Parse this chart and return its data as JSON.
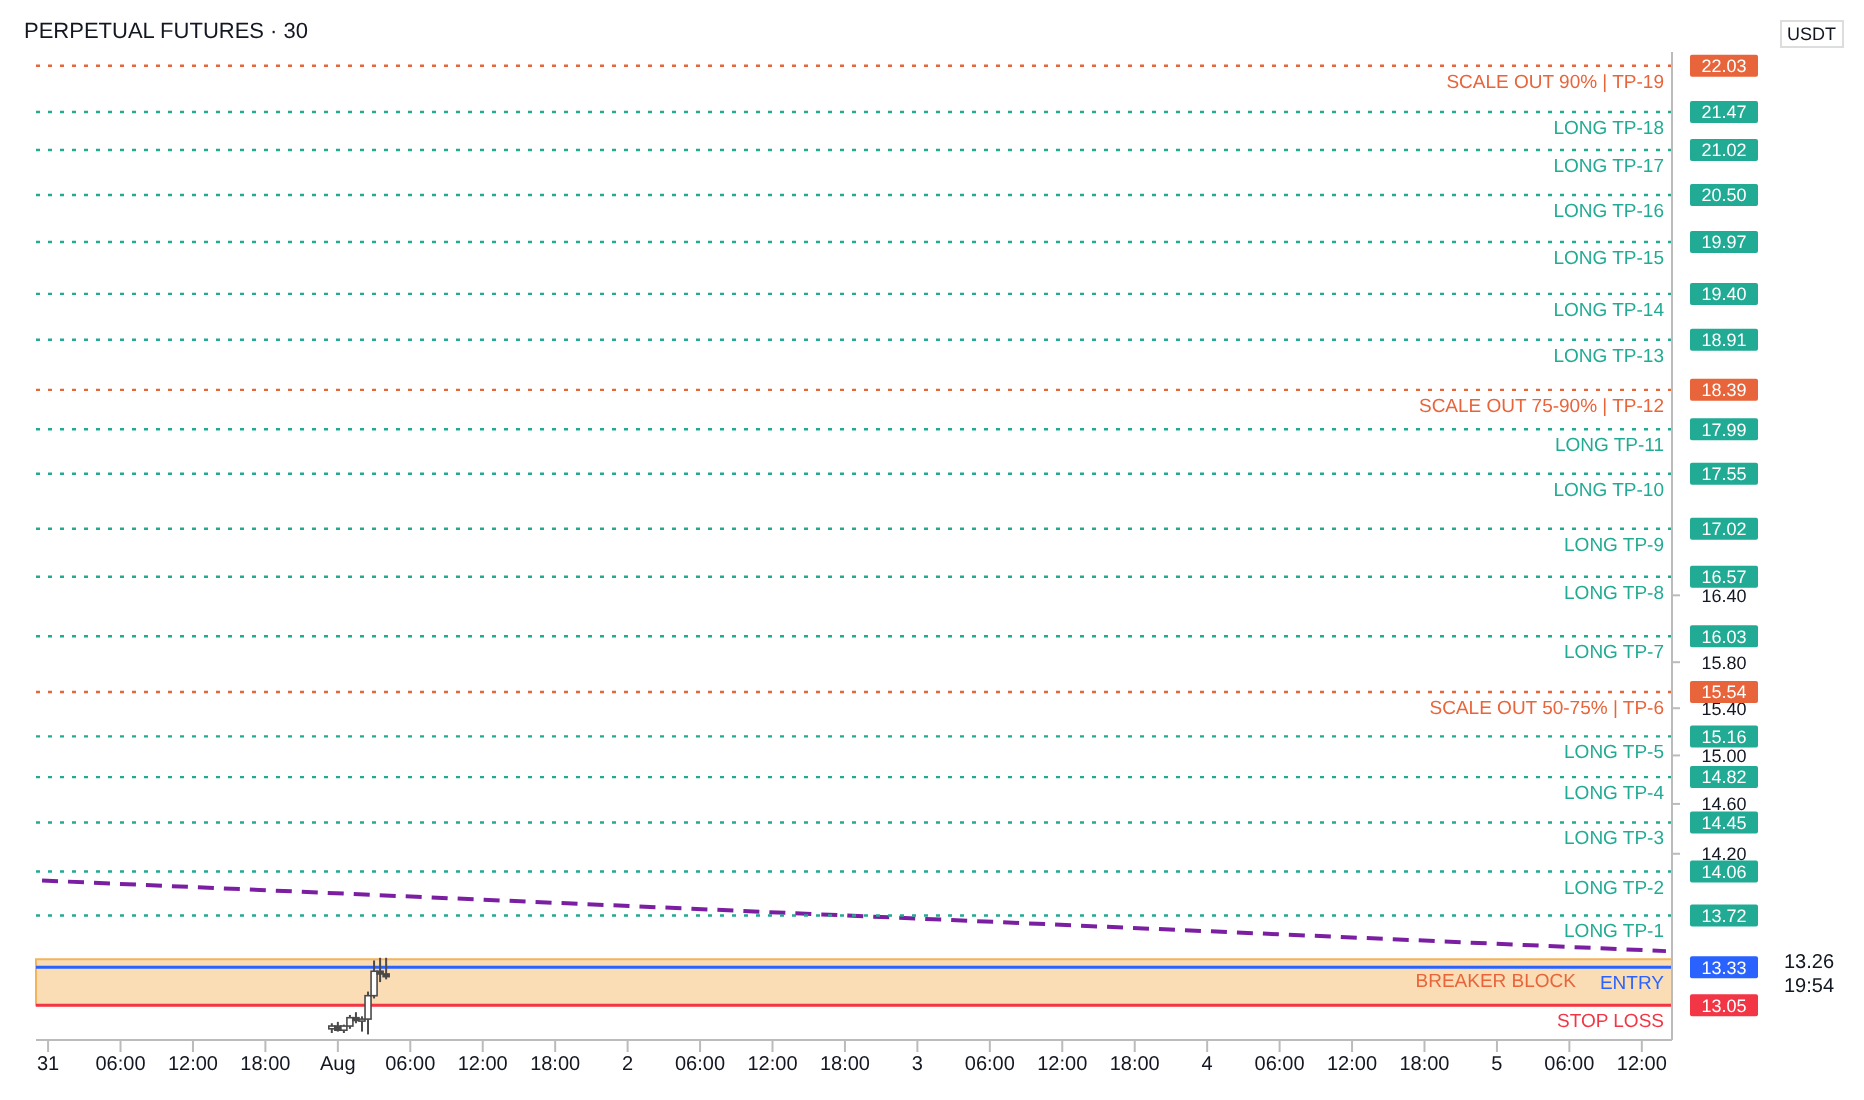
{
  "chart_data": {
    "type": "candlestick",
    "title": "PERPETUAL FUTURES · 30",
    "ylabel": "USDT",
    "log": true,
    "x": [
      "--07-31T23:30",
      "--08-01T00:00",
      "--08-01T00:30",
      "--08-01T01:00",
      "--08-01T01:30",
      "--08-01T02:00",
      "--08-01T02:30",
      "--08-01T03:00",
      "--08-01T03:30",
      "--08-01T04:00"
    ],
    "ohlc": [
      [
        12.88,
        12.92,
        12.85,
        12.9
      ],
      [
        12.9,
        12.93,
        12.86,
        12.87
      ],
      [
        12.87,
        12.91,
        12.85,
        12.9
      ],
      [
        12.9,
        12.98,
        12.88,
        12.96
      ],
      [
        12.96,
        13.0,
        12.92,
        12.94
      ],
      [
        12.94,
        12.97,
        12.86,
        12.95
      ],
      [
        12.95,
        13.15,
        12.84,
        13.12
      ],
      [
        13.12,
        13.38,
        13.1,
        13.3
      ],
      [
        13.3,
        13.4,
        13.22,
        13.28
      ],
      [
        13.28,
        13.4,
        13.24,
        13.26
      ]
    ],
    "color": "#4a4a4a",
    "series": [
      {
        "type": "line",
        "x": [
          "--07-30T23:30",
          "--08-05T14:00"
        ],
        "values": [
          13.99,
          13.45
        ],
        "color": "#7b1fa2",
        "line_style": "dashed"
      }
    ],
    "xlim": [
      "--07-30T23:00",
      "--08-05T14:30"
    ],
    "xticks": [
      {
        "value": "--07-31T00:00",
        "label": "31"
      },
      {
        "value": "--07-31T06:00",
        "label": "06:00"
      },
      {
        "value": "--07-31T12:00",
        "label": "12:00"
      },
      {
        "value": "--07-31T18:00",
        "label": "18:00"
      },
      {
        "value": "--08-01T00:00",
        "label": "Aug"
      },
      {
        "value": "--08-01T06:00",
        "label": "06:00"
      },
      {
        "value": "--08-01T12:00",
        "label": "12:00"
      },
      {
        "value": "--08-01T18:00",
        "label": "18:00"
      },
      {
        "value": "--08-02T00:00",
        "label": "2"
      },
      {
        "value": "--08-02T06:00",
        "label": "06:00"
      },
      {
        "value": "--08-02T12:00",
        "label": "12:00"
      },
      {
        "value": "--08-02T18:00",
        "label": "18:00"
      },
      {
        "value": "--08-03T00:00",
        "label": "3"
      },
      {
        "value": "--08-03T06:00",
        "label": "06:00"
      },
      {
        "value": "--08-03T12:00",
        "label": "12:00"
      },
      {
        "value": "--08-03T18:00",
        "label": "18:00"
      },
      {
        "value": "--08-04T00:00",
        "label": "4"
      },
      {
        "value": "--08-04T06:00",
        "label": "06:00"
      },
      {
        "value": "--08-04T12:00",
        "label": "12:00"
      },
      {
        "value": "--08-04T18:00",
        "label": "18:00"
      },
      {
        "value": "--08-05T00:00",
        "label": "5"
      },
      {
        "value": "--08-05T06:00",
        "label": "06:00"
      },
      {
        "value": "--08-05T12:00",
        "label": "12:00"
      }
    ],
    "ylim": [
      12.8,
      22.2
    ],
    "yticks": [
      {
        "value": 13.05,
        "label": "13.05"
      },
      {
        "value": 13.33,
        "label": "13.33"
      },
      {
        "value": 13.72,
        "label": "13.72"
      },
      {
        "value": 14.06,
        "label": "14.06"
      },
      {
        "value": 14.2,
        "label": "14.20"
      },
      {
        "value": 14.45,
        "label": "14.45"
      },
      {
        "value": 14.6,
        "label": "14.60"
      },
      {
        "value": 14.82,
        "label": "14.82"
      },
      {
        "value": 15.0,
        "label": "15.00"
      },
      {
        "value": 15.16,
        "label": "15.16"
      },
      {
        "value": 15.4,
        "label": "15.40"
      },
      {
        "value": 15.54,
        "label": "15.54"
      },
      {
        "value": 15.8,
        "label": "15.80"
      },
      {
        "value": 16.03,
        "label": "16.03"
      },
      {
        "value": 16.4,
        "label": "16.40"
      },
      {
        "value": 16.57,
        "label": "16.57"
      },
      {
        "value": 17.02,
        "label": "17.02"
      },
      {
        "value": 17.55,
        "label": "17.55"
      },
      {
        "value": 17.99,
        "label": "17.99"
      },
      {
        "value": 18.39,
        "label": "18.39"
      },
      {
        "value": 18.91,
        "label": "18.91"
      },
      {
        "value": 19.4,
        "label": "19.40"
      },
      {
        "value": 19.97,
        "label": "19.97"
      },
      {
        "value": 20.5,
        "label": "20.50"
      },
      {
        "value": 21.02,
        "label": "21.02"
      },
      {
        "value": 21.47,
        "label": "21.47"
      },
      {
        "value": 22.03,
        "label": "22.03"
      }
    ],
    "ref_lines": [
      {
        "axis": "y",
        "value": 22.03,
        "label": "SCALE OUT 90% | TP-19",
        "color": "#e8643a",
        "line_style": "dotted"
      },
      {
        "axis": "y",
        "value": 21.47,
        "label": "LONG TP-18",
        "color": "#22ab94",
        "line_style": "dotted"
      },
      {
        "axis": "y",
        "value": 21.02,
        "label": "LONG TP-17",
        "color": "#22ab94",
        "line_style": "dotted"
      },
      {
        "axis": "y",
        "value": 20.5,
        "label": "LONG TP-16",
        "color": "#22ab94",
        "line_style": "dotted"
      },
      {
        "axis": "y",
        "value": 19.97,
        "label": "LONG TP-15",
        "color": "#22ab94",
        "line_style": "dotted"
      },
      {
        "axis": "y",
        "value": 19.4,
        "label": "LONG TP-14",
        "color": "#22ab94",
        "line_style": "dotted"
      },
      {
        "axis": "y",
        "value": 18.91,
        "label": "LONG TP-13",
        "color": "#22ab94",
        "line_style": "dotted"
      },
      {
        "axis": "y",
        "value": 18.39,
        "label": "SCALE OUT 75-90% | TP-12",
        "color": "#e8643a",
        "line_style": "dotted"
      },
      {
        "axis": "y",
        "value": 17.99,
        "label": "LONG TP-11",
        "color": "#22ab94",
        "line_style": "dotted"
      },
      {
        "axis": "y",
        "value": 17.55,
        "label": "LONG TP-10",
        "color": "#22ab94",
        "line_style": "dotted"
      },
      {
        "axis": "y",
        "value": 17.02,
        "label": "LONG TP-9",
        "color": "#22ab94",
        "line_style": "dotted"
      },
      {
        "axis": "y",
        "value": 16.57,
        "label": "LONG TP-8",
        "color": "#22ab94",
        "line_style": "dotted"
      },
      {
        "axis": "y",
        "value": 16.03,
        "label": "LONG TP-7",
        "color": "#22ab94",
        "line_style": "dotted"
      },
      {
        "axis": "y",
        "value": 15.54,
        "label": "SCALE OUT 50-75% | TP-6",
        "color": "#e8643a",
        "line_style": "dotted"
      },
      {
        "axis": "y",
        "value": 15.16,
        "label": "LONG TP-5",
        "color": "#22ab94",
        "line_style": "dotted"
      },
      {
        "axis": "y",
        "value": 14.82,
        "label": "LONG TP-4",
        "color": "#22ab94",
        "line_style": "dotted"
      },
      {
        "axis": "y",
        "value": 14.45,
        "label": "LONG TP-3",
        "color": "#22ab94",
        "line_style": "dotted"
      },
      {
        "axis": "y",
        "value": 14.06,
        "label": "LONG TP-2",
        "color": "#22ab94",
        "line_style": "dotted"
      },
      {
        "axis": "y",
        "value": 13.72,
        "label": "LONG TP-1",
        "color": "#22ab94",
        "line_style": "dotted"
      },
      {
        "axis": "y",
        "value": 13.33,
        "label": "ENTRY",
        "color": "#2962ff",
        "line_style": "solid"
      },
      {
        "axis": "y",
        "value": 13.05,
        "label": "STOP LOSS",
        "color": "#f23645",
        "line_style": "solid"
      }
    ],
    "bands": [
      {
        "axis": "y",
        "from": 13.05,
        "to": 13.39,
        "label": "BREAKER BLOCK",
        "color": "#f5b45a"
      }
    ],
    "annotations": [
      "13.26",
      "19:54"
    ]
  }
}
